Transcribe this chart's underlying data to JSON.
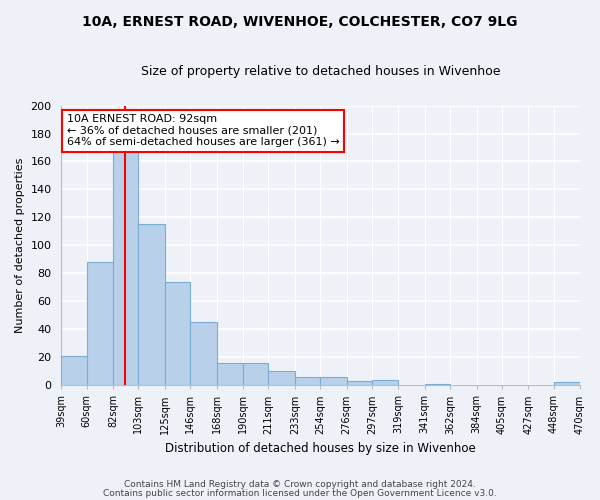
{
  "title": "10A, ERNEST ROAD, WIVENHOE, COLCHESTER, CO7 9LG",
  "subtitle": "Size of property relative to detached houses in Wivenhoe",
  "xlabel": "Distribution of detached houses by size in Wivenhoe",
  "ylabel": "Number of detached properties",
  "bins": [
    39,
    60,
    82,
    103,
    125,
    146,
    168,
    190,
    211,
    233,
    254,
    276,
    297,
    319,
    341,
    362,
    384,
    405,
    427,
    448,
    470
  ],
  "counts": [
    21,
    88,
    168,
    115,
    74,
    45,
    16,
    16,
    10,
    6,
    6,
    3,
    4,
    0,
    1,
    0,
    0,
    0,
    0,
    2
  ],
  "bar_color": "#b8d0ea",
  "bar_edgecolor": "#7aadd4",
  "vline_x": 92,
  "vline_color": "red",
  "annotation_text": "10A ERNEST ROAD: 92sqm\n← 36% of detached houses are smaller (201)\n64% of semi-detached houses are larger (361) →",
  "annotation_box_color": "white",
  "annotation_box_edgecolor": "red",
  "ylim": [
    0,
    200
  ],
  "yticks": [
    0,
    20,
    40,
    60,
    80,
    100,
    120,
    140,
    160,
    180,
    200
  ],
  "tick_labels": [
    "39sqm",
    "60sqm",
    "82sqm",
    "103sqm",
    "125sqm",
    "146sqm",
    "168sqm",
    "190sqm",
    "211sqm",
    "233sqm",
    "254sqm",
    "276sqm",
    "297sqm",
    "319sqm",
    "341sqm",
    "362sqm",
    "384sqm",
    "405sqm",
    "427sqm",
    "448sqm",
    "470sqm"
  ],
  "footer1": "Contains HM Land Registry data © Crown copyright and database right 2024.",
  "footer2": "Contains public sector information licensed under the Open Government Licence v3.0.",
  "background_color": "#eef2f8",
  "grid_color": "white",
  "title_fontsize": 10,
  "subtitle_fontsize": 9,
  "ylabel_fontsize": 8,
  "xlabel_fontsize": 8.5,
  "tick_fontsize": 7,
  "annotation_fontsize": 8,
  "footer_fontsize": 6.5
}
